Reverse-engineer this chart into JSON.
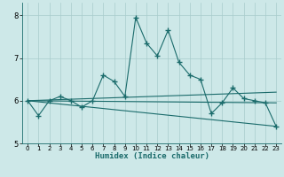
{
  "xlabel": "Humidex (Indice chaleur)",
  "xlim": [
    -0.5,
    23.5
  ],
  "ylim": [
    5,
    8.3
  ],
  "yticks": [
    5,
    6,
    7,
    8
  ],
  "xticks": [
    0,
    1,
    2,
    3,
    4,
    5,
    6,
    7,
    8,
    9,
    10,
    11,
    12,
    13,
    14,
    15,
    16,
    17,
    18,
    19,
    20,
    21,
    22,
    23
  ],
  "bg_color": "#cde8e8",
  "line_color": "#1a6b6b",
  "grid_color": "#a8cccc",
  "series1": {
    "x": [
      0,
      1,
      2,
      3,
      4,
      5,
      6,
      7,
      8,
      9,
      10,
      11,
      12,
      13,
      14,
      15,
      16,
      17,
      18,
      19,
      20,
      21,
      22,
      23
    ],
    "y": [
      6.0,
      5.65,
      6.0,
      6.1,
      6.0,
      5.85,
      6.0,
      6.6,
      6.45,
      6.1,
      7.95,
      7.35,
      7.05,
      7.65,
      6.9,
      6.6,
      6.5,
      5.7,
      5.95,
      6.3,
      6.05,
      6.0,
      5.95,
      5.4
    ]
  },
  "line2": {
    "x": [
      0,
      23
    ],
    "y": [
      6.0,
      6.2
    ]
  },
  "line3": {
    "x": [
      0,
      23
    ],
    "y": [
      6.0,
      5.95
    ]
  },
  "line4": {
    "x": [
      0,
      23
    ],
    "y": [
      6.0,
      5.4
    ]
  }
}
